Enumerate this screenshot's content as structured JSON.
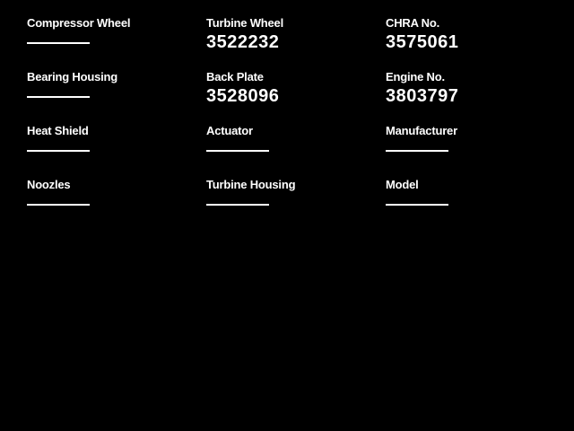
{
  "theme": {
    "background": "#000000",
    "text": "#ffffff",
    "empty_line": "#ffffff"
  },
  "form": {
    "fields": [
      {
        "label": "Compressor Wheel",
        "value": ""
      },
      {
        "label": "Turbine Wheel",
        "value": "3522232"
      },
      {
        "label": "CHRA No.",
        "value": "3575061"
      },
      {
        "label": "Bearing Housing",
        "value": ""
      },
      {
        "label": "Back Plate",
        "value": "3528096"
      },
      {
        "label": "Engine No.",
        "value": "3803797"
      },
      {
        "label": "Heat Shield",
        "value": ""
      },
      {
        "label": "Actuator",
        "value": ""
      },
      {
        "label": "Manufacturer",
        "value": ""
      },
      {
        "label": "Noozles",
        "value": ""
      },
      {
        "label": "Turbine Housing",
        "value": ""
      },
      {
        "label": "Model",
        "value": ""
      }
    ]
  }
}
